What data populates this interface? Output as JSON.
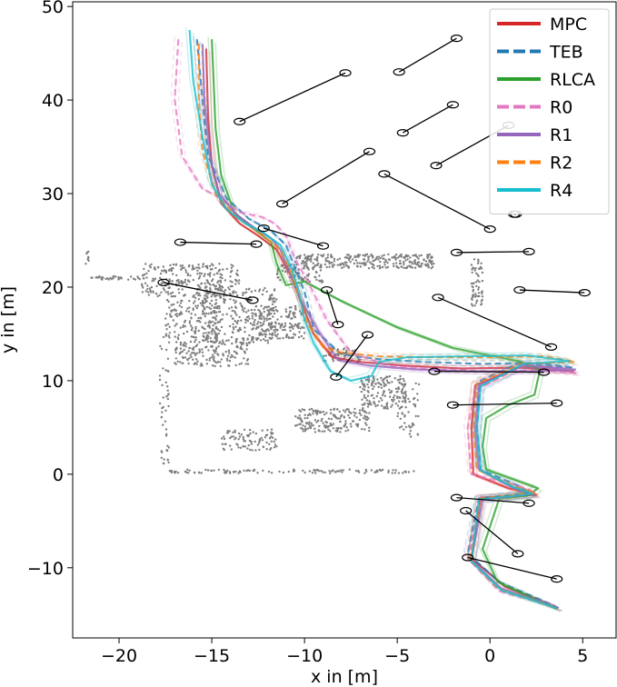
{
  "chart_data": {
    "type": "line",
    "xlabel": "x in [m]",
    "ylabel": "y in [m]",
    "xlim": [
      -22.5,
      6.8
    ],
    "ylim": [
      -17.5,
      50.5
    ],
    "xticks": [
      -20,
      -15,
      -10,
      -5,
      0,
      5
    ],
    "yticks": [
      -10,
      0,
      10,
      20,
      30,
      40,
      50
    ],
    "xtick_labels": [
      "−20",
      "−15",
      "−10",
      "−5",
      "0",
      "5"
    ],
    "ytick_labels": [
      "−10",
      "0",
      "10",
      "20",
      "30",
      "40",
      "50"
    ],
    "grid": false,
    "legend_position": "top-right",
    "series": [
      {
        "name": "MPC",
        "color": "#d62728",
        "style": "solid",
        "x": [
          -15.3,
          -15.2,
          -15.0,
          -14.5,
          -13.5,
          -12.5,
          -11.5,
          -10.8,
          -10.3,
          -9.5,
          -8.5,
          -7.0,
          -4.5,
          -1.5,
          2.0,
          4.5,
          1.5,
          -0.8,
          -1.0,
          -0.9,
          1.0,
          2.5,
          -0.5,
          -1.0,
          0.8,
          3.7
        ],
        "y": [
          45.5,
          38.0,
          33.0,
          29.0,
          26.8,
          25.5,
          24.0,
          21.5,
          19.0,
          15.0,
          12.5,
          12.0,
          11.6,
          11.3,
          11.4,
          11.0,
          11.4,
          9.5,
          5.0,
          0.0,
          -1.5,
          -2.2,
          -2.5,
          -9.0,
          -12.0,
          -14.3
        ]
      },
      {
        "name": "TEB",
        "color": "#1f77b4",
        "style": "dashed",
        "x": [
          -15.8,
          -15.5,
          -15.2,
          -14.2,
          -13.0,
          -11.8,
          -11.0,
          -10.5,
          -10.0,
          -9.5,
          -8.0,
          -6.0,
          -3.5,
          -0.5,
          2.5,
          4.5,
          1.5,
          -0.5,
          -0.7,
          -0.5,
          1.5,
          2.2,
          -0.6,
          -1.2,
          0.5,
          3.6
        ],
        "y": [
          46.5,
          40.0,
          34.0,
          29.5,
          27.3,
          26.0,
          24.5,
          22.0,
          19.5,
          15.5,
          12.8,
          12.3,
          12.0,
          11.8,
          11.9,
          11.4,
          11.8,
          10.0,
          5.0,
          0.5,
          -1.2,
          -2.0,
          -2.6,
          -8.5,
          -11.5,
          -14.2
        ]
      },
      {
        "name": "RLCA",
        "color": "#2ca02c",
        "style": "solid",
        "x": [
          -15.0,
          -14.9,
          -14.8,
          -14.5,
          -13.8,
          -12.6,
          -11.8,
          -11.5,
          -11.0,
          -10.0,
          -8.0,
          -5.0,
          -2.0,
          1.5,
          2.7,
          2.4,
          1.0,
          -0.2,
          -0.4,
          -0.2,
          2.6,
          2.0,
          0.5,
          -0.4,
          0.4,
          3.6
        ],
        "y": [
          46.5,
          42.0,
          37.0,
          32.0,
          28.0,
          26.0,
          24.8,
          22.5,
          20.2,
          20.6,
          18.5,
          15.7,
          13.5,
          12.1,
          11.2,
          8.5,
          7.4,
          6.0,
          3.0,
          0.5,
          -1.5,
          -2.3,
          -2.6,
          -8.0,
          -11.5,
          -14.4
        ]
      },
      {
        "name": "R0",
        "color": "#e377c2",
        "style": "dashed",
        "x": [
          -16.8,
          -17.0,
          -16.6,
          -15.5,
          -14.5,
          -13.5,
          -12.3,
          -11.6,
          -11.0,
          -10.5,
          -9.8,
          -8.8,
          -7.5,
          -5.5,
          -3.0,
          0.0,
          3.0,
          4.7,
          2.0,
          -0.8,
          -1.2,
          -1.0,
          1.5,
          2.5,
          -0.5,
          -1.2,
          0.5,
          3.5
        ],
        "y": [
          46.5,
          40.0,
          34.0,
          30.5,
          29.5,
          28.0,
          27.5,
          26.8,
          25.5,
          23.0,
          20.5,
          16.5,
          13.0,
          11.6,
          11.2,
          11.0,
          11.1,
          10.8,
          11.8,
          9.0,
          5.0,
          0.0,
          -1.2,
          -2.0,
          -2.8,
          -9.0,
          -12.5,
          -14.1
        ]
      },
      {
        "name": "R1",
        "color": "#9467bd",
        "style": "solid",
        "x": [
          -15.5,
          -15.4,
          -15.1,
          -14.6,
          -13.7,
          -12.6,
          -11.8,
          -11.3,
          -10.9,
          -10.3,
          -9.3,
          -8.2,
          -6.5,
          -4.0,
          -1.0,
          2.2,
          4.6,
          1.8,
          -0.6,
          -0.8,
          -0.6,
          1.2,
          2.4,
          -0.4,
          -1.0,
          0.6,
          3.7
        ],
        "y": [
          46.0,
          40.0,
          34.0,
          30.0,
          27.8,
          26.2,
          25.2,
          24.0,
          22.0,
          19.0,
          15.5,
          12.2,
          11.6,
          11.2,
          11.0,
          11.0,
          11.2,
          11.6,
          9.5,
          5.0,
          0.5,
          -1.4,
          -2.1,
          -2.7,
          -9.2,
          -12.2,
          -14.3
        ]
      },
      {
        "name": "R2",
        "color": "#ff7f0e",
        "style": "dashed",
        "x": [
          -15.7,
          -15.7,
          -15.5,
          -14.8,
          -13.7,
          -12.3,
          -11.3,
          -10.8,
          -10.4,
          -9.8,
          -9.0,
          -8.0,
          -6.0,
          -3.0,
          0.0,
          3.0,
          4.6,
          1.7,
          -0.7,
          -0.9,
          -0.7,
          1.3,
          2.4,
          -0.5,
          -1.1,
          0.5,
          3.6
        ],
        "y": [
          46.0,
          40.0,
          34.5,
          30.0,
          27.5,
          25.6,
          24.0,
          22.0,
          19.5,
          16.0,
          13.6,
          13.0,
          12.6,
          12.5,
          12.5,
          12.6,
          12.0,
          11.8,
          9.7,
          5.0,
          0.5,
          -1.3,
          -2.0,
          -2.6,
          -9.1,
          -12.3,
          -14.3
        ]
      },
      {
        "name": "R4",
        "color": "#17becf",
        "style": "solid",
        "x": [
          -16.2,
          -16.0,
          -15.5,
          -15.0,
          -14.2,
          -13.2,
          -12.2,
          -11.3,
          -10.7,
          -10.3,
          -10.0,
          -9.5,
          -8.6,
          -7.5,
          -6.4,
          -6.0,
          -4.5,
          -1.5,
          2.0,
          4.3,
          1.8,
          -0.5,
          -0.7,
          -0.5,
          1.3,
          2.3,
          -0.6,
          -1.0,
          0.6,
          3.6
        ],
        "y": [
          47.5,
          42.0,
          36.0,
          31.0,
          28.3,
          26.8,
          25.8,
          24.5,
          22.0,
          19.5,
          16.5,
          14.0,
          11.0,
          10.0,
          10.5,
          12.0,
          12.5,
          12.6,
          12.7,
          12.1,
          11.8,
          9.4,
          5.0,
          0.4,
          -1.4,
          -2.1,
          -2.7,
          -9.3,
          -12.4,
          -14.3
        ]
      }
    ],
    "obstacles": [
      {
        "from": [
          -13.5,
          37.7
        ],
        "to": [
          -7.8,
          42.9
        ]
      },
      {
        "from": [
          -4.9,
          43.0
        ],
        "to": [
          -1.8,
          46.6
        ]
      },
      {
        "from": [
          -4.7,
          36.5
        ],
        "to": [
          -2.0,
          39.5
        ]
      },
      {
        "from": [
          -2.9,
          33.0
        ],
        "to": [
          1.0,
          37.3
        ]
      },
      {
        "from": [
          -11.2,
          28.9
        ],
        "to": [
          -6.5,
          34.5
        ]
      },
      {
        "from": [
          -5.7,
          32.1
        ],
        "to": [
          0.0,
          26.2
        ]
      },
      {
        "from": [
          1.3,
          27.8
        ],
        "to": [
          1.4,
          27.8
        ]
      },
      {
        "from": [
          -12.2,
          26.3
        ],
        "to": [
          -9.0,
          24.4
        ]
      },
      {
        "from": [
          -16.7,
          24.8
        ],
        "to": [
          -12.6,
          24.6
        ]
      },
      {
        "from": [
          -1.8,
          23.7
        ],
        "to": [
          2.1,
          23.8
        ]
      },
      {
        "from": [
          -17.6,
          20.5
        ],
        "to": [
          -12.8,
          18.6
        ]
      },
      {
        "from": [
          -8.8,
          19.7
        ],
        "to": [
          -8.2,
          16.0
        ]
      },
      {
        "from": [
          1.6,
          19.7
        ],
        "to": [
          5.1,
          19.4
        ]
      },
      {
        "from": [
          -2.8,
          18.9
        ],
        "to": [
          3.3,
          13.6
        ]
      },
      {
        "from": [
          -6.6,
          14.9
        ],
        "to": [
          -8.3,
          10.4
        ]
      },
      {
        "from": [
          -3.0,
          11.0
        ],
        "to": [
          2.9,
          10.9
        ]
      },
      {
        "from": [
          -2.0,
          7.4
        ],
        "to": [
          3.6,
          7.6
        ]
      },
      {
        "from": [
          -1.8,
          -2.5
        ],
        "to": [
          2.1,
          -3.1
        ]
      },
      {
        "from": [
          -1.3,
          -3.9
        ],
        "to": [
          1.5,
          -8.5
        ]
      },
      {
        "from": [
          -1.2,
          -8.9
        ],
        "to": [
          3.6,
          -11.2
        ]
      }
    ],
    "point_clusters": [
      {
        "x0": -18.8,
        "x1": -13.5,
        "y0": 19.0,
        "y1": 22.5,
        "n": 260
      },
      {
        "x0": -17.5,
        "x1": -14.5,
        "y0": 14.5,
        "y1": 19.0,
        "n": 160
      },
      {
        "x0": -15.5,
        "x1": -11.5,
        "y0": 14.0,
        "y1": 20.0,
        "n": 260
      },
      {
        "x0": -12.8,
        "x1": -10.0,
        "y0": 14.5,
        "y1": 18.0,
        "n": 160
      },
      {
        "x0": -17.0,
        "x1": -13.0,
        "y0": 11.5,
        "y1": 14.5,
        "n": 170
      },
      {
        "x0": -10.5,
        "x1": -3.0,
        "y0": 22.0,
        "y1": 23.5,
        "n": 280
      },
      {
        "x0": -11.5,
        "x1": -9.0,
        "y0": 20.5,
        "y1": 22.5,
        "n": 80
      },
      {
        "x0": -9.0,
        "x1": -7.0,
        "y0": 12.0,
        "y1": 13.5,
        "n": 60
      },
      {
        "x0": -7.0,
        "x1": -4.5,
        "y0": 7.0,
        "y1": 10.5,
        "n": 150
      },
      {
        "x0": -10.5,
        "x1": -6.5,
        "y0": 4.5,
        "y1": 7.0,
        "n": 180
      },
      {
        "x0": -14.5,
        "x1": -11.5,
        "y0": 2.5,
        "y1": 4.8,
        "n": 90
      },
      {
        "x0": -5.0,
        "x1": -3.8,
        "y0": 4.0,
        "y1": 10.0,
        "n": 60
      },
      {
        "x0": -1.0,
        "x1": -0.4,
        "y0": 18.0,
        "y1": 23.0,
        "n": 60
      },
      {
        "x0": -17.3,
        "x1": -4.0,
        "y0": 0.1,
        "y1": 0.5,
        "n": 110
      },
      {
        "x0": -17.8,
        "x1": -17.3,
        "y0": 0.5,
        "y1": 15.0,
        "n": 50
      },
      {
        "x0": -21.5,
        "x1": -18.5,
        "y0": 20.8,
        "y1": 21.2,
        "n": 35
      },
      {
        "x0": -21.8,
        "x1": -21.6,
        "y0": 22.5,
        "y1": 24.0,
        "n": 8
      }
    ]
  },
  "legend": {
    "items": [
      {
        "label": "MPC",
        "color": "#d62728",
        "style": "solid"
      },
      {
        "label": "TEB",
        "color": "#1f77b4",
        "style": "dashed"
      },
      {
        "label": "RLCA",
        "color": "#2ca02c",
        "style": "solid"
      },
      {
        "label": "R0",
        "color": "#e377c2",
        "style": "dashed"
      },
      {
        "label": "R1",
        "color": "#9467bd",
        "style": "solid"
      },
      {
        "label": "R2",
        "color": "#ff7f0e",
        "style": "dashed"
      },
      {
        "label": "R4",
        "color": "#17becf",
        "style": "solid"
      }
    ]
  }
}
